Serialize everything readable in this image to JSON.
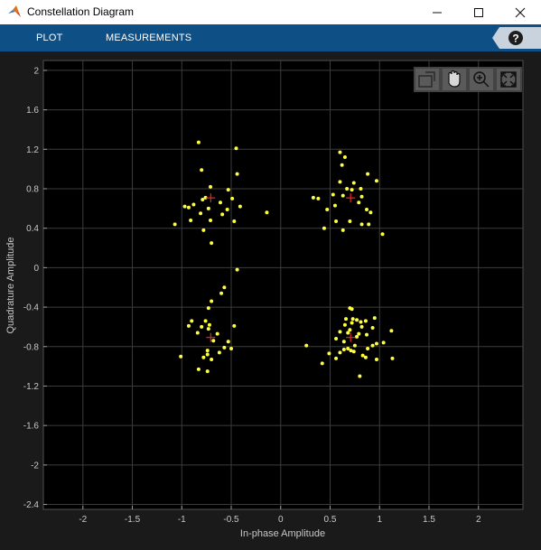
{
  "window": {
    "title": "Constellation Diagram",
    "app_icon": "matlab-logo-icon",
    "controls": [
      "minimize-icon",
      "maximize-icon",
      "close-icon"
    ]
  },
  "toolstrip": {
    "tabs": [
      {
        "label": "PLOT"
      },
      {
        "label": "MEASUREMENTS"
      }
    ],
    "help_label": "?",
    "background": "#0e4f86"
  },
  "axes_toolbar": {
    "buttons": [
      "restore-view-icon",
      "pan-hand-icon",
      "zoom-in-icon",
      "fit-to-view-icon"
    ]
  },
  "chart_data": {
    "type": "scatter",
    "xlabel": "In-phase Amplitude",
    "ylabel": "Quadrature Amplitude",
    "xlim": [
      -2.4,
      2.45
    ],
    "ylim": [
      -2.45,
      2.1
    ],
    "xticks": [
      "-2",
      "-1.5",
      "-1",
      "-0.5",
      "0",
      "0.5",
      "1",
      "1.5",
      "2"
    ],
    "yticks": [
      "2",
      "1.6",
      "1.2",
      "0.8",
      "0.4",
      "0",
      "-0.4",
      "-0.8",
      "-1.2",
      "-1.6",
      "-2",
      "-2.4"
    ],
    "grid": true,
    "colors": {
      "points": "#ffff40",
      "reference": "#e02020",
      "background": "#000000",
      "grid": "#3c3c3c",
      "ticks": "#c8c8c8"
    },
    "reference": [
      {
        "x": -0.707,
        "y": 0.707
      },
      {
        "x": 0.707,
        "y": 0.707
      },
      {
        "x": -0.707,
        "y": -0.707
      },
      {
        "x": 0.707,
        "y": -0.707
      }
    ],
    "points": [
      {
        "x": -0.83,
        "y": 1.27
      },
      {
        "x": -0.45,
        "y": 1.21
      },
      {
        "x": -0.8,
        "y": 0.99
      },
      {
        "x": -0.44,
        "y": 0.95
      },
      {
        "x": -0.71,
        "y": 0.82
      },
      {
        "x": -0.53,
        "y": 0.79
      },
      {
        "x": -0.76,
        "y": 0.71
      },
      {
        "x": -0.49,
        "y": 0.7
      },
      {
        "x": -0.79,
        "y": 0.69
      },
      {
        "x": -0.61,
        "y": 0.66
      },
      {
        "x": -0.88,
        "y": 0.64
      },
      {
        "x": -0.97,
        "y": 0.62
      },
      {
        "x": -0.93,
        "y": 0.61
      },
      {
        "x": -0.41,
        "y": 0.62
      },
      {
        "x": -0.73,
        "y": 0.6
      },
      {
        "x": -0.54,
        "y": 0.59
      },
      {
        "x": -0.81,
        "y": 0.55
      },
      {
        "x": -0.59,
        "y": 0.54
      },
      {
        "x": -0.91,
        "y": 0.48
      },
      {
        "x": -0.71,
        "y": 0.48
      },
      {
        "x": -0.47,
        "y": 0.47
      },
      {
        "x": -1.07,
        "y": 0.44
      },
      {
        "x": -0.78,
        "y": 0.38
      },
      {
        "x": -0.14,
        "y": 0.56
      },
      {
        "x": -0.7,
        "y": 0.25
      },
      {
        "x": 0.6,
        "y": 1.17
      },
      {
        "x": 0.65,
        "y": 1.12
      },
      {
        "x": 0.62,
        "y": 1.04
      },
      {
        "x": 0.88,
        "y": 0.95
      },
      {
        "x": 0.97,
        "y": 0.88
      },
      {
        "x": 0.6,
        "y": 0.87
      },
      {
        "x": 0.74,
        "y": 0.86
      },
      {
        "x": 0.67,
        "y": 0.8
      },
      {
        "x": 0.72,
        "y": 0.79
      },
      {
        "x": 0.81,
        "y": 0.8
      },
      {
        "x": 0.53,
        "y": 0.74
      },
      {
        "x": 0.63,
        "y": 0.73
      },
      {
        "x": 0.82,
        "y": 0.72
      },
      {
        "x": 0.33,
        "y": 0.71
      },
      {
        "x": 0.38,
        "y": 0.7
      },
      {
        "x": 0.79,
        "y": 0.66
      },
      {
        "x": 0.55,
        "y": 0.63
      },
      {
        "x": 0.87,
        "y": 0.59
      },
      {
        "x": 0.91,
        "y": 0.56
      },
      {
        "x": 0.47,
        "y": 0.59
      },
      {
        "x": 0.56,
        "y": 0.47
      },
      {
        "x": 0.7,
        "y": 0.47
      },
      {
        "x": 0.82,
        "y": 0.44
      },
      {
        "x": 0.89,
        "y": 0.44
      },
      {
        "x": 0.44,
        "y": 0.4
      },
      {
        "x": 0.63,
        "y": 0.38
      },
      {
        "x": 1.03,
        "y": 0.34
      },
      {
        "x": -0.44,
        "y": -0.02
      },
      {
        "x": -0.57,
        "y": -0.2
      },
      {
        "x": -0.6,
        "y": -0.26
      },
      {
        "x": -0.7,
        "y": -0.34
      },
      {
        "x": -0.73,
        "y": -0.41
      },
      {
        "x": -0.9,
        "y": -0.54
      },
      {
        "x": -0.76,
        "y": -0.54
      },
      {
        "x": -0.93,
        "y": -0.59
      },
      {
        "x": -0.72,
        "y": -0.58
      },
      {
        "x": -0.47,
        "y": -0.59
      },
      {
        "x": -0.8,
        "y": -0.6
      },
      {
        "x": -0.73,
        "y": -0.62
      },
      {
        "x": -0.84,
        "y": -0.66
      },
      {
        "x": -0.64,
        "y": -0.67
      },
      {
        "x": -0.68,
        "y": -0.74
      },
      {
        "x": -0.53,
        "y": -0.75
      },
      {
        "x": -0.57,
        "y": -0.81
      },
      {
        "x": -0.5,
        "y": -0.82
      },
      {
        "x": -0.74,
        "y": -0.84
      },
      {
        "x": -0.62,
        "y": -0.86
      },
      {
        "x": -0.74,
        "y": -0.88
      },
      {
        "x": -0.78,
        "y": -0.91
      },
      {
        "x": -1.01,
        "y": -0.9
      },
      {
        "x": -0.7,
        "y": -0.93
      },
      {
        "x": -0.83,
        "y": -1.03
      },
      {
        "x": -0.74,
        "y": -1.05
      },
      {
        "x": 0.7,
        "y": -0.41
      },
      {
        "x": 0.72,
        "y": -0.42
      },
      {
        "x": 0.95,
        "y": -0.51
      },
      {
        "x": 0.66,
        "y": -0.52
      },
      {
        "x": 0.73,
        "y": -0.52
      },
      {
        "x": 0.77,
        "y": -0.53
      },
      {
        "x": 0.86,
        "y": -0.54
      },
      {
        "x": 0.81,
        "y": -0.55
      },
      {
        "x": 0.65,
        "y": -0.58
      },
      {
        "x": 0.72,
        "y": -0.56
      },
      {
        "x": 0.82,
        "y": -0.6
      },
      {
        "x": 0.7,
        "y": -0.63
      },
      {
        "x": 0.93,
        "y": -0.61
      },
      {
        "x": 1.12,
        "y": -0.64
      },
      {
        "x": 0.6,
        "y": -0.65
      },
      {
        "x": 0.68,
        "y": -0.66
      },
      {
        "x": 0.79,
        "y": -0.67
      },
      {
        "x": 0.87,
        "y": -0.68
      },
      {
        "x": 0.77,
        "y": -0.7
      },
      {
        "x": 0.56,
        "y": -0.72
      },
      {
        "x": 0.64,
        "y": -0.75
      },
      {
        "x": 1.04,
        "y": -0.76
      },
      {
        "x": 0.97,
        "y": -0.77
      },
      {
        "x": 0.26,
        "y": -0.79
      },
      {
        "x": 0.75,
        "y": -0.79
      },
      {
        "x": 0.93,
        "y": -0.79
      },
      {
        "x": 0.68,
        "y": -0.82
      },
      {
        "x": 0.88,
        "y": -0.82
      },
      {
        "x": 0.64,
        "y": -0.83
      },
      {
        "x": 0.71,
        "y": -0.84
      },
      {
        "x": 0.6,
        "y": -0.86
      },
      {
        "x": 0.49,
        "y": -0.87
      },
      {
        "x": 0.74,
        "y": -0.85
      },
      {
        "x": 0.83,
        "y": -0.89
      },
      {
        "x": 0.86,
        "y": -0.91
      },
      {
        "x": 1.13,
        "y": -0.92
      },
      {
        "x": 0.56,
        "y": -0.92
      },
      {
        "x": 0.97,
        "y": -0.93
      },
      {
        "x": 0.42,
        "y": -0.97
      },
      {
        "x": 0.8,
        "y": -1.1
      }
    ]
  }
}
